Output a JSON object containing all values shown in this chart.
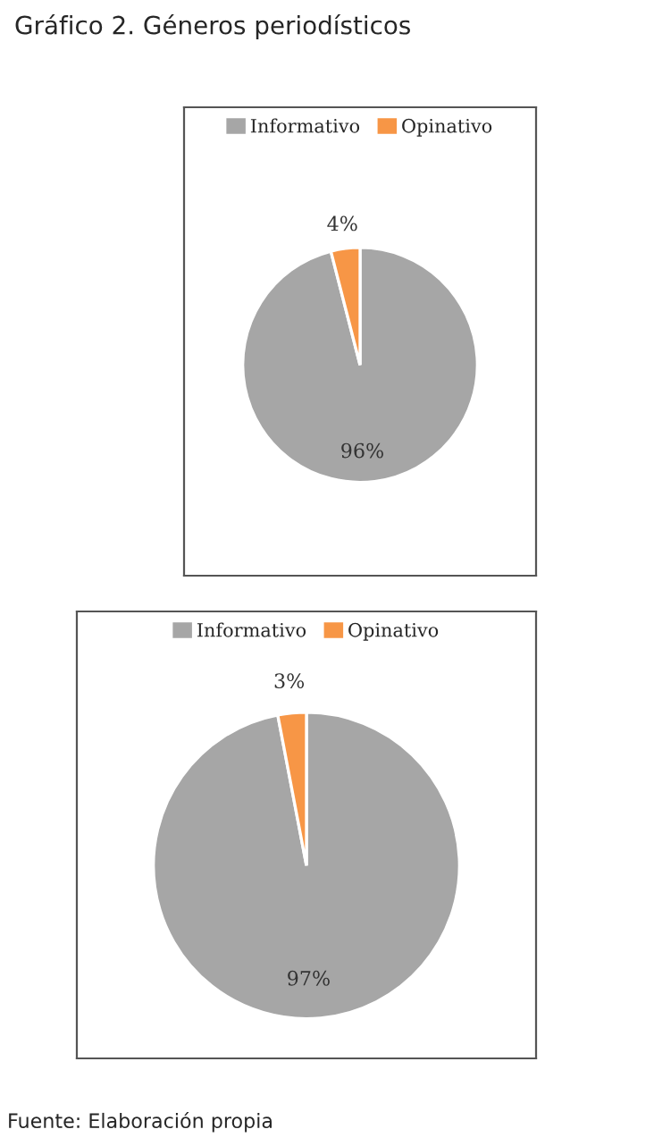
{
  "chart_data": [
    {
      "type": "pie",
      "title": "Gráfico 2. Géneros periodísticos",
      "categories": [
        "Informativo",
        "Opinativo"
      ],
      "values": [
        96,
        4
      ],
      "colors": [
        "#a6a6a6",
        "#f79646"
      ],
      "value_labels": [
        "96%",
        "4%"
      ],
      "legend": "top"
    },
    {
      "type": "pie",
      "categories": [
        "Informativo",
        "Opinativo"
      ],
      "values": [
        97,
        3
      ],
      "colors": [
        "#a6a6a6",
        "#f79646"
      ],
      "value_labels": [
        "97%",
        "3%"
      ],
      "legend": "top",
      "annotations": [
        "Fuente: Elaboración propia"
      ]
    }
  ]
}
